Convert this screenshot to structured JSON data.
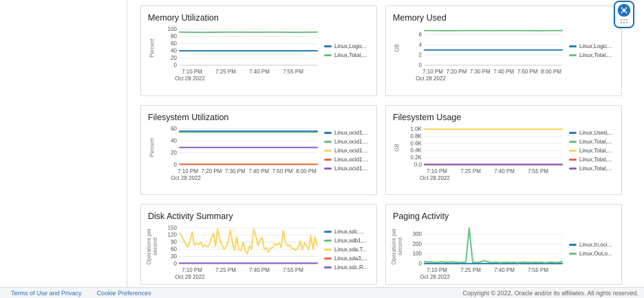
{
  "footer": {
    "links": [
      "Terms of Use and Privacy",
      "Cookie Preferences"
    ],
    "copyright": "Copyright © 2022, Oracle and/or its affiliates. All rights reserved."
  },
  "help_widget": {
    "icon": "life-ring-icon",
    "accent_color": "#1b6fbd"
  },
  "palette": {
    "blue": "#267db3",
    "green": "#68c182",
    "yellow": "#fad55c",
    "red": "#ed6647",
    "purple": "#8561c8"
  },
  "chart_data": [
    {
      "type": "line",
      "title": "Memory Utilization",
      "ylabel_lines": [
        "Percent"
      ],
      "yticks": {
        "labels": [
          "0",
          "20",
          "40",
          "60",
          "80",
          "100"
        ],
        "values": [
          0,
          20,
          40,
          60,
          80,
          100
        ]
      },
      "ytop": 105,
      "xticks": {
        "labels": [
          "7:10 PM",
          "7:25 PM",
          "7:40 PM",
          "7:55 PM"
        ],
        "fracs": [
          0.09,
          0.335,
          0.58,
          0.825
        ]
      },
      "xdate": "Oct 28 2022",
      "legend": [
        {
          "label": "Linux,Logic...",
          "color": "#267db3"
        },
        {
          "label": "Linux,Total,...",
          "color": "#68c182"
        }
      ],
      "series": [
        {
          "name": "Linux,Logic...",
          "color": "#267db3",
          "values": [
            40,
            40
          ]
        },
        {
          "name": "Linux,Total,...",
          "color": "#68c182",
          "values": [
            92,
            91.5,
            92,
            91.8,
            92,
            91.6,
            92
          ]
        }
      ]
    },
    {
      "type": "line",
      "title": "Memory Used",
      "ylabel_lines": [
        "GB"
      ],
      "yticks": {
        "labels": [
          "0",
          "2",
          "4",
          "6"
        ],
        "values": [
          0,
          2,
          4,
          6
        ]
      },
      "ytop": 7.4,
      "xticks": {
        "labels": [
          "7:10 PM",
          "7:20 PM",
          "7:30 PM",
          "7:40 PM",
          "7:50 PM",
          "8:00 PM"
        ],
        "fracs": [
          0.06,
          0.232,
          0.404,
          0.576,
          0.748,
          0.92
        ]
      },
      "xdate": "Oct 28 2022",
      "legend": [
        {
          "label": "Linux,Logic...",
          "color": "#267db3"
        },
        {
          "label": "Linux,Total,...",
          "color": "#68c182"
        }
      ],
      "series": [
        {
          "name": "Linux,Logic...",
          "color": "#267db3",
          "values": [
            3,
            3
          ]
        },
        {
          "name": "Linux,Total,...",
          "color": "#68c182",
          "values": [
            6.8,
            6.75,
            6.8,
            6.78,
            6.8,
            6.76,
            6.8
          ]
        }
      ]
    },
    {
      "type": "line",
      "title": "Filesystem Utilization",
      "ylabel_lines": [
        "Percent"
      ],
      "yticks": {
        "labels": [
          "0",
          "20",
          "40",
          "60"
        ],
        "values": [
          0,
          20,
          40,
          60
        ]
      },
      "ytop": 63,
      "xticks": {
        "labels": [
          "7:10 PM",
          "7:20 PM",
          "7:30 PM",
          "7:40 PM",
          "7:50 PM",
          "8:00 PM"
        ],
        "fracs": [
          0.06,
          0.232,
          0.404,
          0.576,
          0.748,
          0.92
        ]
      },
      "xdate": "Oct 28 2022",
      "legend": [
        {
          "label": "Linux,ocid1....",
          "color": "#267db3"
        },
        {
          "label": "Linux,ocid1....",
          "color": "#68c182"
        },
        {
          "label": "Linux,ocid1....",
          "color": "#fad55c"
        },
        {
          "label": "Linux,ocid1....",
          "color": "#ed6647"
        },
        {
          "label": "Linux,ocid1....",
          "color": "#8561c8"
        }
      ],
      "series": [
        {
          "name": "Linux,ocid1....",
          "color": "#fad55c",
          "values": [
            0.8,
            0.8
          ]
        },
        {
          "name": "Linux,ocid1....",
          "color": "#ed6647",
          "values": [
            0.8,
            0.8
          ]
        },
        {
          "name": "Linux,ocid1....",
          "color": "#8561c8",
          "values": [
            29,
            29
          ]
        },
        {
          "name": "Linux,ocid1....",
          "color": "#68c182",
          "values": [
            54.5,
            54.5
          ]
        },
        {
          "name": "Linux,ocid1....",
          "color": "#267db3",
          "values": [
            56,
            56
          ]
        }
      ]
    },
    {
      "type": "line",
      "title": "Filesystem Usage",
      "ylabel_lines": [
        "GB"
      ],
      "yticks": {
        "labels": [
          "0.0",
          "0.2K",
          "0.4K",
          "0.6K",
          "0.8K",
          "1.0K"
        ],
        "values": [
          0,
          200,
          400,
          600,
          800,
          1000
        ]
      },
      "ytop": 1060,
      "xticks": {
        "labels": [
          "7:10 PM",
          "7:25 PM",
          "7:40 PM",
          "7:55 PM"
        ],
        "fracs": [
          0.09,
          0.335,
          0.58,
          0.825
        ]
      },
      "xdate": "Oct 28 2022",
      "legend": [
        {
          "label": "Linux,Used,...",
          "color": "#267db3"
        },
        {
          "label": "Linux,Total,...",
          "color": "#68c182"
        },
        {
          "label": "Linux,Total,...",
          "color": "#fad55c"
        },
        {
          "label": "Linux,Total,...",
          "color": "#ed6647"
        },
        {
          "label": "Linux,Total,...",
          "color": "#8561c8"
        }
      ],
      "series": [
        {
          "name": "Linux,Used,...",
          "color": "#267db3",
          "values": [
            2,
            2
          ]
        },
        {
          "name": "Linux,Total,...",
          "color": "#68c182",
          "values": [
            4,
            4
          ]
        },
        {
          "name": "Linux,Total,...",
          "color": "#fad55c",
          "values": [
            1000,
            1000
          ]
        },
        {
          "name": "Linux,Total,...",
          "color": "#ed6647",
          "values": [
            6,
            6
          ]
        },
        {
          "name": "Linux,Total,...",
          "color": "#8561c8",
          "values": [
            12,
            12
          ]
        }
      ]
    },
    {
      "type": "line",
      "title": "Disk Activity Summary",
      "ylabel_lines": [
        "Operations per",
        "second"
      ],
      "yticks": {
        "labels": [
          "0",
          "30",
          "60",
          "90",
          "120",
          "150"
        ],
        "values": [
          0,
          30,
          60,
          90,
          120,
          150
        ]
      },
      "ytop": 158,
      "xticks": {
        "labels": [
          "7:10 PM",
          "7:25 PM",
          "7:40 PM",
          "7:55 PM"
        ],
        "fracs": [
          0.09,
          0.335,
          0.58,
          0.825
        ]
      },
      "xdate": "Oct 28 2022",
      "legend": [
        {
          "label": "Linux,sdc,...",
          "color": "#267db3"
        },
        {
          "label": "Linux,sdb1,...",
          "color": "#68c182"
        },
        {
          "label": "Linux,sda,T...",
          "color": "#fad55c"
        },
        {
          "label": "Linux,sda3,...",
          "color": "#ed6647"
        },
        {
          "label": "Linux,sdc,R...",
          "color": "#8561c8"
        }
      ],
      "series": [
        {
          "name": "Linux,sdc,...",
          "color": "#267db3",
          "values": [
            1.5,
            1.5
          ]
        },
        {
          "name": "Linux,sdb1,...",
          "color": "#68c182",
          "values": [
            1.5,
            1.5
          ]
        },
        {
          "name": "Linux,sda3,...",
          "color": "#ed6647",
          "values": [
            1.5,
            1.5
          ]
        },
        {
          "name": "Linux,sda,T...",
          "color": "#fad55c",
          "values": [
            127,
            117,
            97,
            82,
            70,
            95,
            133,
            76,
            86,
            80,
            90,
            71,
            79,
            70,
            78,
            108,
            127,
            72,
            147,
            101,
            78,
            61,
            70,
            94,
            142,
            86,
            57,
            111,
            59,
            54,
            89,
            54,
            42,
            74,
            60,
            144,
            117,
            77,
            95,
            109,
            60,
            67,
            49,
            64,
            67,
            84,
            77,
            87,
            67,
            138,
            91,
            74,
            79,
            65,
            61,
            57,
            69,
            94,
            59,
            87,
            74,
            59,
            117,
            61,
            111,
            76
          ]
        },
        {
          "name": "Linux,sdc,R...",
          "color": "#8561c8",
          "values": [
            2,
            2
          ]
        }
      ]
    },
    {
      "type": "line",
      "title": "Paging Activity",
      "ylabel_lines": [
        "Operations per",
        "second"
      ],
      "yticks": {
        "labels": [
          "0",
          "100",
          "200",
          "300"
        ],
        "values": [
          0,
          100,
          200,
          300
        ]
      },
      "ytop": 385,
      "xticks": {
        "labels": [
          "7:10 PM",
          "7:25 PM",
          "7:40 PM",
          "7:55 PM"
        ],
        "fracs": [
          0.09,
          0.335,
          0.58,
          0.825
        ]
      },
      "xdate": "Oct 28 2022",
      "legend": [
        {
          "label": "Linux,In,oci...",
          "color": "#267db3"
        },
        {
          "label": "Linux,Out,o...",
          "color": "#68c182"
        }
      ],
      "series": [
        {
          "name": "Linux,In,oci...",
          "color": "#267db3",
          "values": [
            1,
            1
          ]
        },
        {
          "name": "Linux,Out,o...",
          "color": "#68c182",
          "values": [
            22,
            15,
            18,
            13,
            16,
            20,
            14,
            17,
            19,
            15,
            12,
            14,
            16,
            365,
            15,
            12,
            14,
            28,
            25,
            14,
            12,
            16,
            10,
            13,
            15,
            11,
            14,
            10,
            13,
            17,
            13,
            11,
            15,
            12,
            14,
            10,
            13,
            15,
            11,
            13,
            22
          ]
        }
      ]
    }
  ]
}
